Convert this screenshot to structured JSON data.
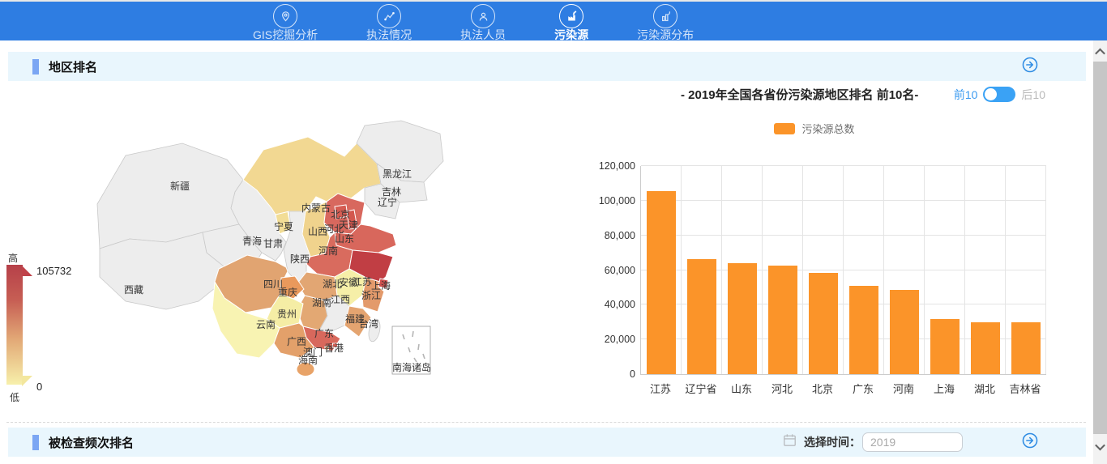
{
  "nav": {
    "items": [
      {
        "label": "GIS挖掘分析",
        "icon": "map-pin-icon",
        "active": false
      },
      {
        "label": "执法情况",
        "icon": "line-chart-icon",
        "active": false
      },
      {
        "label": "执法人员",
        "icon": "people-icon",
        "active": false
      },
      {
        "label": "污染源",
        "icon": "factory-icon",
        "active": true
      },
      {
        "label": "污染源分布",
        "icon": "factory-bars-icon",
        "active": false
      }
    ]
  },
  "region_section": {
    "title": "地区排名",
    "map": {
      "legend_high": "高",
      "legend_low": "低",
      "max_value": "105732",
      "min_value": "0",
      "provinces": [
        {
          "name": "新疆",
          "color": "#ededed"
        },
        {
          "name": "西藏",
          "color": "#ededed"
        },
        {
          "name": "青海",
          "color": "#ededed"
        },
        {
          "name": "甘肃",
          "color": "#ededed"
        },
        {
          "name": "宁夏",
          "color": "#f2dd96"
        },
        {
          "name": "内蒙古",
          "color": "#f2d892"
        },
        {
          "name": "黑龙江",
          "color": "#ededed"
        },
        {
          "name": "吉林",
          "color": "#ededed"
        },
        {
          "name": "辽宁",
          "color": "#ededed"
        },
        {
          "name": "陕西",
          "color": "#ededed"
        },
        {
          "name": "山西",
          "color": "#f0d38d"
        },
        {
          "name": "河北",
          "color": "#d8685e"
        },
        {
          "name": "北京",
          "color": "#d55c52"
        },
        {
          "name": "天津",
          "color": "#d3574e"
        },
        {
          "name": "山东",
          "color": "#d8675c"
        },
        {
          "name": "河南",
          "color": "#d96b5e"
        },
        {
          "name": "江苏",
          "color": "#c13e44"
        },
        {
          "name": "安徽",
          "color": "#f6efa8"
        },
        {
          "name": "浙江",
          "color": "#e39a6b"
        },
        {
          "name": "上海",
          "color": "#cf4f4e"
        },
        {
          "name": "湖北",
          "color": "#e2a673"
        },
        {
          "name": "湖南",
          "color": "#e3a873"
        },
        {
          "name": "江西",
          "color": "#ededed"
        },
        {
          "name": "四川",
          "color": "#e1a471"
        },
        {
          "name": "重庆",
          "color": "#e9995c"
        },
        {
          "name": "贵州",
          "color": "#f5eda5"
        },
        {
          "name": "云南",
          "color": "#f8f3b2"
        },
        {
          "name": "广西",
          "color": "#e3a06a"
        },
        {
          "name": "广东",
          "color": "#d8685c"
        },
        {
          "name": "福建",
          "color": "#e4a470"
        },
        {
          "name": "台湾",
          "color": "#ededed"
        },
        {
          "name": "海南",
          "color": "#e8a368"
        },
        {
          "name": "香港",
          "color": "#d55c52"
        },
        {
          "name": "澳门",
          "color": "#e2a673"
        },
        {
          "name": "南海诸岛",
          "color": "#ffffff"
        }
      ]
    },
    "chart": {
      "title": "- 2019年全国各省份污染源地区排名 前10名-",
      "toggle": {
        "on_label": "前10",
        "off_label": "后10",
        "selected": "前10"
      },
      "legend": "污染源总数"
    }
  },
  "chart_data": {
    "type": "bar",
    "title": "- 2019年全国各省份污染源地区排名 前10名-",
    "categories": [
      "江苏",
      "辽宁省",
      "山东",
      "河北",
      "北京",
      "广东",
      "河南",
      "上海",
      "湖北",
      "吉林省"
    ],
    "series": [
      {
        "name": "污染源总数",
        "values": [
          105732,
          66400,
          64100,
          62400,
          58600,
          50800,
          48500,
          31900,
          29900,
          29800
        ]
      }
    ],
    "ylim": [
      0,
      120000
    ],
    "ytick_step": 20000,
    "bar_color": "#fb9429",
    "legend_position": "top",
    "grid": true
  },
  "checked_section": {
    "title": "被检查频次排名",
    "time_label": "选择时间：",
    "time_value": "2019"
  },
  "colors": {
    "nav_bg": "#2e7de2",
    "accent_blue": "#2f8ce3",
    "header_bg": "#e9f6fd",
    "bar_orange": "#fb9429",
    "toggle_blue": "#3aa2f5"
  }
}
